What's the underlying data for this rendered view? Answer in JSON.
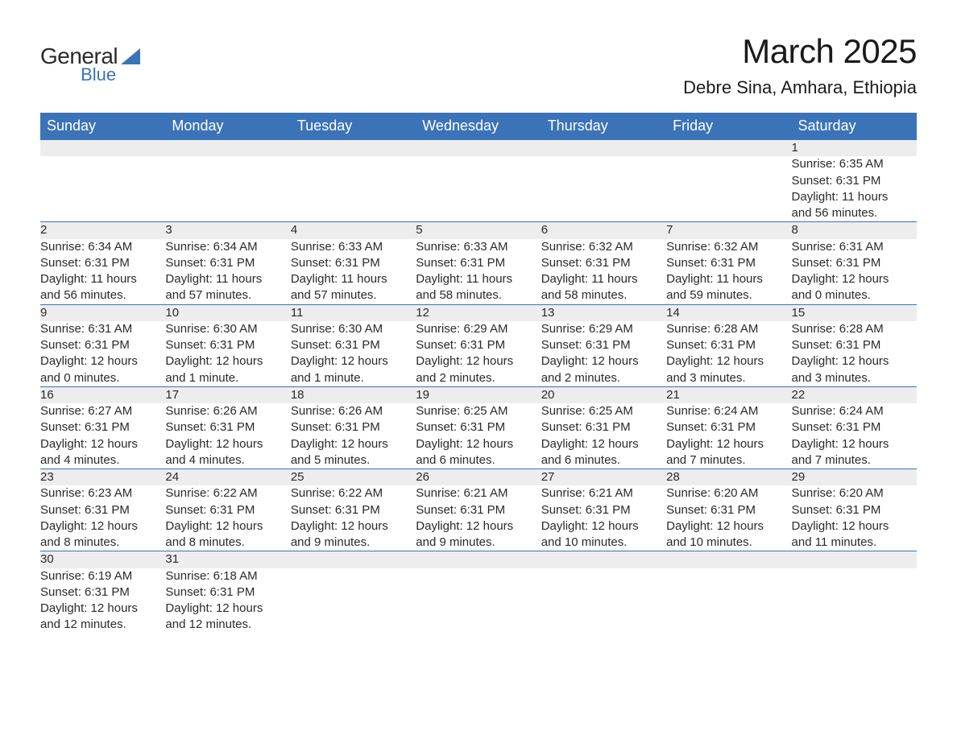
{
  "logo": {
    "text_top": "General",
    "text_bottom": "Blue",
    "icon_color": "#3b73b9"
  },
  "title": "March 2025",
  "location": "Debre Sina, Amhara, Ethiopia",
  "colors": {
    "header_bg": "#3b73b9",
    "header_text": "#ffffff",
    "daynum_bg": "#ededed",
    "row_border": "#3b73b9",
    "body_text": "#2a2a2a",
    "daynum_text": "#555555",
    "page_bg": "#ffffff"
  },
  "fonts": {
    "title_size_pt": 32,
    "location_size_pt": 17,
    "weekday_size_pt": 14,
    "daynum_size_pt": 13,
    "body_size_pt": 11
  },
  "weekdays": [
    "Sunday",
    "Monday",
    "Tuesday",
    "Wednesday",
    "Thursday",
    "Friday",
    "Saturday"
  ],
  "weeks": [
    [
      null,
      null,
      null,
      null,
      null,
      null,
      {
        "n": "1",
        "sr": "Sunrise: 6:35 AM",
        "ss": "Sunset: 6:31 PM",
        "d1": "Daylight: 11 hours",
        "d2": "and 56 minutes."
      }
    ],
    [
      {
        "n": "2",
        "sr": "Sunrise: 6:34 AM",
        "ss": "Sunset: 6:31 PM",
        "d1": "Daylight: 11 hours",
        "d2": "and 56 minutes."
      },
      {
        "n": "3",
        "sr": "Sunrise: 6:34 AM",
        "ss": "Sunset: 6:31 PM",
        "d1": "Daylight: 11 hours",
        "d2": "and 57 minutes."
      },
      {
        "n": "4",
        "sr": "Sunrise: 6:33 AM",
        "ss": "Sunset: 6:31 PM",
        "d1": "Daylight: 11 hours",
        "d2": "and 57 minutes."
      },
      {
        "n": "5",
        "sr": "Sunrise: 6:33 AM",
        "ss": "Sunset: 6:31 PM",
        "d1": "Daylight: 11 hours",
        "d2": "and 58 minutes."
      },
      {
        "n": "6",
        "sr": "Sunrise: 6:32 AM",
        "ss": "Sunset: 6:31 PM",
        "d1": "Daylight: 11 hours",
        "d2": "and 58 minutes."
      },
      {
        "n": "7",
        "sr": "Sunrise: 6:32 AM",
        "ss": "Sunset: 6:31 PM",
        "d1": "Daylight: 11 hours",
        "d2": "and 59 minutes."
      },
      {
        "n": "8",
        "sr": "Sunrise: 6:31 AM",
        "ss": "Sunset: 6:31 PM",
        "d1": "Daylight: 12 hours",
        "d2": "and 0 minutes."
      }
    ],
    [
      {
        "n": "9",
        "sr": "Sunrise: 6:31 AM",
        "ss": "Sunset: 6:31 PM",
        "d1": "Daylight: 12 hours",
        "d2": "and 0 minutes."
      },
      {
        "n": "10",
        "sr": "Sunrise: 6:30 AM",
        "ss": "Sunset: 6:31 PM",
        "d1": "Daylight: 12 hours",
        "d2": "and 1 minute."
      },
      {
        "n": "11",
        "sr": "Sunrise: 6:30 AM",
        "ss": "Sunset: 6:31 PM",
        "d1": "Daylight: 12 hours",
        "d2": "and 1 minute."
      },
      {
        "n": "12",
        "sr": "Sunrise: 6:29 AM",
        "ss": "Sunset: 6:31 PM",
        "d1": "Daylight: 12 hours",
        "d2": "and 2 minutes."
      },
      {
        "n": "13",
        "sr": "Sunrise: 6:29 AM",
        "ss": "Sunset: 6:31 PM",
        "d1": "Daylight: 12 hours",
        "d2": "and 2 minutes."
      },
      {
        "n": "14",
        "sr": "Sunrise: 6:28 AM",
        "ss": "Sunset: 6:31 PM",
        "d1": "Daylight: 12 hours",
        "d2": "and 3 minutes."
      },
      {
        "n": "15",
        "sr": "Sunrise: 6:28 AM",
        "ss": "Sunset: 6:31 PM",
        "d1": "Daylight: 12 hours",
        "d2": "and 3 minutes."
      }
    ],
    [
      {
        "n": "16",
        "sr": "Sunrise: 6:27 AM",
        "ss": "Sunset: 6:31 PM",
        "d1": "Daylight: 12 hours",
        "d2": "and 4 minutes."
      },
      {
        "n": "17",
        "sr": "Sunrise: 6:26 AM",
        "ss": "Sunset: 6:31 PM",
        "d1": "Daylight: 12 hours",
        "d2": "and 4 minutes."
      },
      {
        "n": "18",
        "sr": "Sunrise: 6:26 AM",
        "ss": "Sunset: 6:31 PM",
        "d1": "Daylight: 12 hours",
        "d2": "and 5 minutes."
      },
      {
        "n": "19",
        "sr": "Sunrise: 6:25 AM",
        "ss": "Sunset: 6:31 PM",
        "d1": "Daylight: 12 hours",
        "d2": "and 6 minutes."
      },
      {
        "n": "20",
        "sr": "Sunrise: 6:25 AM",
        "ss": "Sunset: 6:31 PM",
        "d1": "Daylight: 12 hours",
        "d2": "and 6 minutes."
      },
      {
        "n": "21",
        "sr": "Sunrise: 6:24 AM",
        "ss": "Sunset: 6:31 PM",
        "d1": "Daylight: 12 hours",
        "d2": "and 7 minutes."
      },
      {
        "n": "22",
        "sr": "Sunrise: 6:24 AM",
        "ss": "Sunset: 6:31 PM",
        "d1": "Daylight: 12 hours",
        "d2": "and 7 minutes."
      }
    ],
    [
      {
        "n": "23",
        "sr": "Sunrise: 6:23 AM",
        "ss": "Sunset: 6:31 PM",
        "d1": "Daylight: 12 hours",
        "d2": "and 8 minutes."
      },
      {
        "n": "24",
        "sr": "Sunrise: 6:22 AM",
        "ss": "Sunset: 6:31 PM",
        "d1": "Daylight: 12 hours",
        "d2": "and 8 minutes."
      },
      {
        "n": "25",
        "sr": "Sunrise: 6:22 AM",
        "ss": "Sunset: 6:31 PM",
        "d1": "Daylight: 12 hours",
        "d2": "and 9 minutes."
      },
      {
        "n": "26",
        "sr": "Sunrise: 6:21 AM",
        "ss": "Sunset: 6:31 PM",
        "d1": "Daylight: 12 hours",
        "d2": "and 9 minutes."
      },
      {
        "n": "27",
        "sr": "Sunrise: 6:21 AM",
        "ss": "Sunset: 6:31 PM",
        "d1": "Daylight: 12 hours",
        "d2": "and 10 minutes."
      },
      {
        "n": "28",
        "sr": "Sunrise: 6:20 AM",
        "ss": "Sunset: 6:31 PM",
        "d1": "Daylight: 12 hours",
        "d2": "and 10 minutes."
      },
      {
        "n": "29",
        "sr": "Sunrise: 6:20 AM",
        "ss": "Sunset: 6:31 PM",
        "d1": "Daylight: 12 hours",
        "d2": "and 11 minutes."
      }
    ],
    [
      {
        "n": "30",
        "sr": "Sunrise: 6:19 AM",
        "ss": "Sunset: 6:31 PM",
        "d1": "Daylight: 12 hours",
        "d2": "and 12 minutes."
      },
      {
        "n": "31",
        "sr": "Sunrise: 6:18 AM",
        "ss": "Sunset: 6:31 PM",
        "d1": "Daylight: 12 hours",
        "d2": "and 12 minutes."
      },
      null,
      null,
      null,
      null,
      null
    ]
  ]
}
